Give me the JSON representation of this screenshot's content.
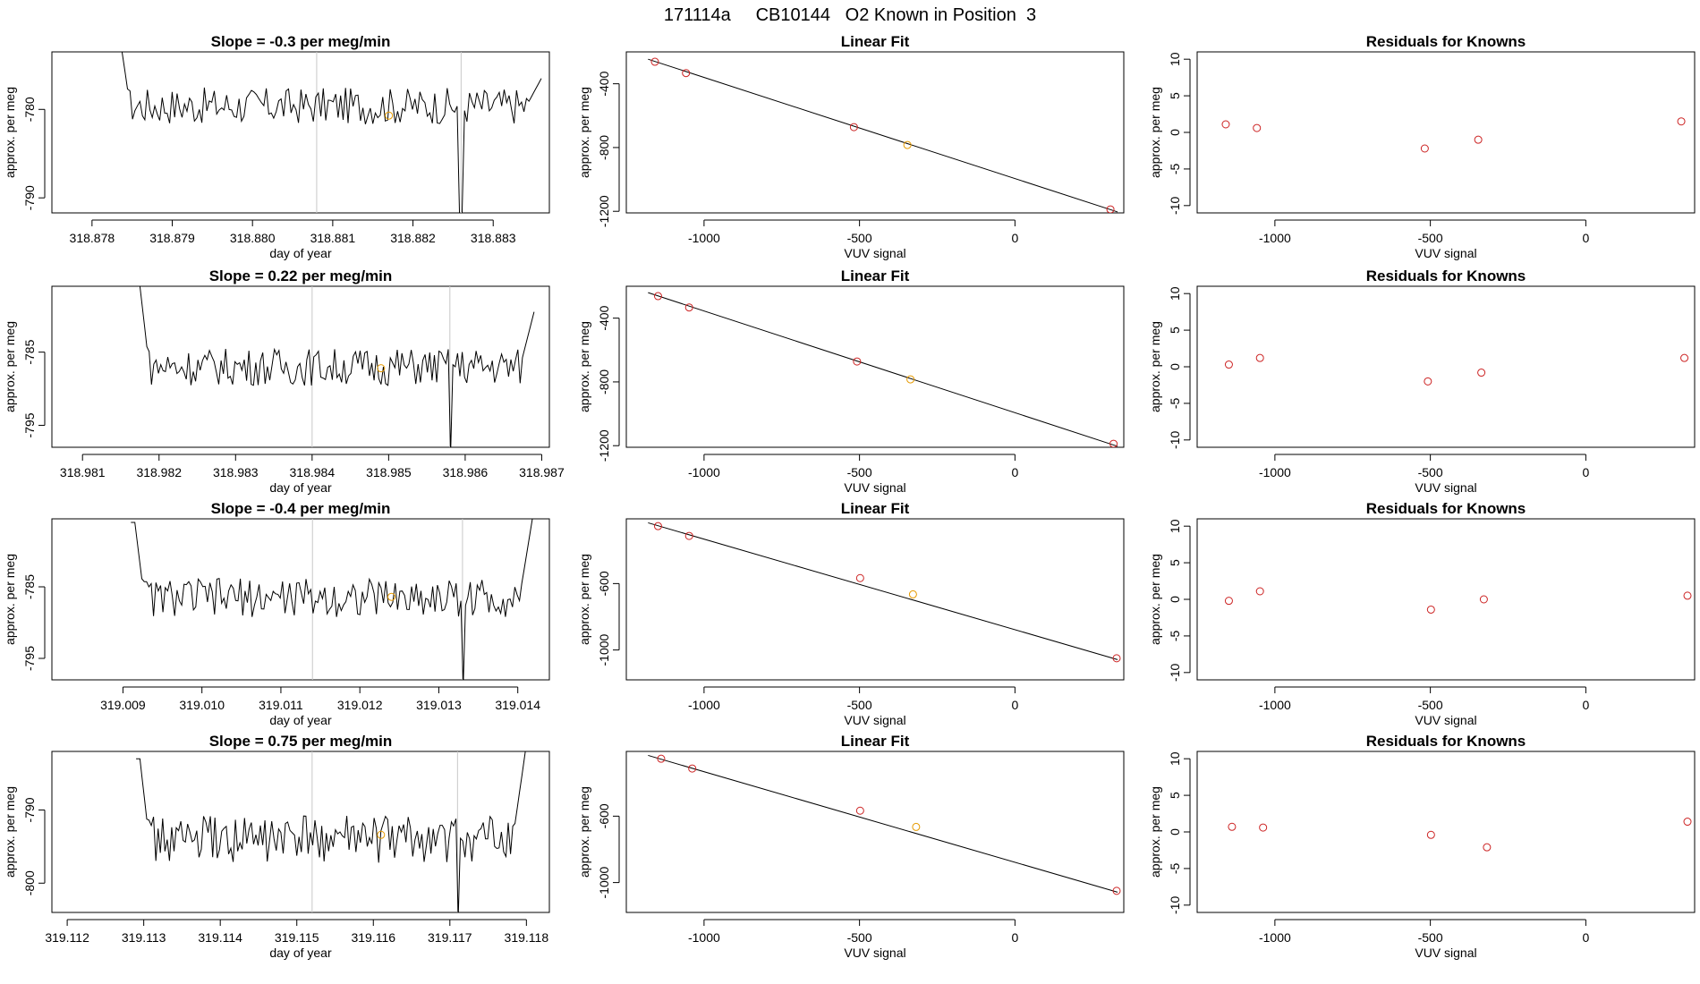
{
  "page_title": "171114a     CB10144   O2 Known in Position  3",
  "colors": {
    "line": "#000000",
    "point": "#cc2222",
    "highlight": "#e69a00",
    "vline": "#c8c8c8",
    "axis": "#000000"
  },
  "chart_data": [
    {
      "type": "line",
      "title": "Slope =  -0.3  per meg/min",
      "xlabel": "day of year",
      "ylabel": "approx. per meg",
      "xticks": [
        "318.878",
        "318.879",
        "318.880",
        "318.881",
        "318.882",
        "318.883"
      ],
      "yticks": [
        "-780",
        "-790"
      ],
      "xlim": [
        318.8775,
        318.8837
      ],
      "ylim": [
        -791.7,
        -773.5
      ],
      "vlines": [
        318.8808,
        318.8826
      ],
      "highlight": {
        "x": 318.8817,
        "y": -780.7
      },
      "noise": {
        "start": 318.8783,
        "end": 318.8836,
        "base": -779.6,
        "amp": 1.3,
        "head": -772.0,
        "head_end": 318.87835,
        "drop_at": 318.8826,
        "drop_to": -792.0,
        "tail": -776.5
      }
    },
    {
      "type": "scatter",
      "title": "Linear Fit",
      "xlabel": "VUV signal",
      "ylabel": "approx. per meg",
      "xticks": [
        "-1000",
        "-500",
        "0"
      ],
      "yticks": [
        "-400",
        "-800",
        "-1200"
      ],
      "xlim": [
        -1250,
        350
      ],
      "ylim": [
        -1210,
        -200
      ],
      "points": [
        [
          -1158,
          -262
        ],
        [
          -1058,
          -333
        ],
        [
          -518,
          -672
        ],
        [
          -346,
          -784
        ],
        [
          307,
          -1188
        ]
      ],
      "highlight_index": 3,
      "fit": [
        [
          -1180,
          -246
        ],
        [
          330,
          -1204
        ]
      ]
    },
    {
      "type": "scatter",
      "title": "Residuals for Knowns",
      "xlabel": "VUV signal",
      "ylabel": "approx. per meg",
      "xticks": [
        "-1000",
        "-500",
        "0"
      ],
      "yticks": [
        "10",
        "5",
        "0",
        "-5",
        "-10"
      ],
      "xlim": [
        -1250,
        350
      ],
      "ylim": [
        -11,
        11
      ],
      "points": [
        [
          -1158,
          1.1
        ],
        [
          -1058,
          0.6
        ],
        [
          -518,
          -2.2
        ],
        [
          -346,
          -1.0
        ],
        [
          307,
          1.5
        ]
      ]
    },
    {
      "type": "line",
      "title": "Slope =  0.22  per meg/min",
      "xlabel": "day of year",
      "ylabel": "approx. per meg",
      "xticks": [
        "318.981",
        "318.982",
        "318.983",
        "318.984",
        "318.985",
        "318.986",
        "318.987"
      ],
      "yticks": [
        "-785",
        "-795"
      ],
      "xlim": [
        318.9806,
        318.9871
      ],
      "ylim": [
        -798,
        -776
      ],
      "vlines": [
        318.984,
        318.9858
      ],
      "highlight": {
        "x": 318.9849,
        "y": -787.2
      },
      "noise": {
        "start": 318.9817,
        "end": 318.9869,
        "base": -787.0,
        "amp": 1.6,
        "head": -776.0,
        "head_end": 318.98175,
        "drop_at": 318.9858,
        "drop_to": -799.0,
        "tail": -779.5
      }
    },
    {
      "type": "scatter",
      "title": "Linear Fit",
      "xlabel": "VUV signal",
      "ylabel": "approx. per meg",
      "xticks": [
        "-1000",
        "-500",
        "0"
      ],
      "yticks": [
        "-400",
        "-800",
        "-1200"
      ],
      "xlim": [
        -1250,
        350
      ],
      "ylim": [
        -1210,
        -200
      ],
      "points": [
        [
          -1148,
          -262
        ],
        [
          -1048,
          -333
        ],
        [
          -508,
          -672
        ],
        [
          -336,
          -784
        ],
        [
          317,
          -1188
        ]
      ],
      "highlight_index": 3,
      "fit": [
        [
          -1180,
          -240
        ],
        [
          330,
          -1204
        ]
      ]
    },
    {
      "type": "scatter",
      "title": "Residuals for Knowns",
      "xlabel": "VUV signal",
      "ylabel": "approx. per meg",
      "xticks": [
        "-1000",
        "-500",
        "0"
      ],
      "yticks": [
        "10",
        "5",
        "0",
        "-5",
        "-10"
      ],
      "xlim": [
        -1250,
        350
      ],
      "ylim": [
        -11,
        11
      ],
      "points": [
        [
          -1148,
          0.3
        ],
        [
          -1048,
          1.2
        ],
        [
          -508,
          -2.0
        ],
        [
          -336,
          -0.8
        ],
        [
          317,
          1.2
        ]
      ]
    },
    {
      "type": "line",
      "title": "Slope =  -0.4  per meg/min",
      "xlabel": "day of year",
      "ylabel": "approx. per meg",
      "xticks": [
        "319.009",
        "319.010",
        "319.011",
        "319.012",
        "319.013",
        "319.014"
      ],
      "yticks": [
        "-785",
        "-795"
      ],
      "xlim": [
        319.0081,
        319.0144
      ],
      "ylim": [
        -798,
        -775.5
      ],
      "vlines": [
        319.0114,
        319.0133
      ],
      "highlight": {
        "x": 319.0124,
        "y": -786.4
      },
      "noise": {
        "start": 319.0091,
        "end": 319.0142,
        "base": -786.5,
        "amp": 1.7,
        "head": -776.0,
        "head_end": 319.00915,
        "drop_at": 319.0133,
        "drop_to": -799.0,
        "tail": -774.5
      }
    },
    {
      "type": "scatter",
      "title": "Linear Fit",
      "xlabel": "VUV signal",
      "ylabel": "approx. per meg",
      "xticks": [
        "-1000",
        "-500",
        "0"
      ],
      "yticks": [
        "-600",
        "-1000"
      ],
      "xlim": [
        -1250,
        350
      ],
      "ylim": [
        -1180,
        -210
      ],
      "points": [
        [
          -1148,
          -254
        ],
        [
          -1048,
          -313
        ],
        [
          -498,
          -567
        ],
        [
          -328,
          -665
        ],
        [
          327,
          -1050
        ]
      ],
      "highlight_index": 3,
      "fit": [
        [
          -1180,
          -234
        ],
        [
          330,
          -1058
        ]
      ]
    },
    {
      "type": "scatter",
      "title": "Residuals for Knowns",
      "xlabel": "VUV signal",
      "ylabel": "approx. per meg",
      "xticks": [
        "-1000",
        "-500",
        "0"
      ],
      "yticks": [
        "10",
        "5",
        "0",
        "-5",
        "-10"
      ],
      "xlim": [
        -1250,
        350
      ],
      "ylim": [
        -11,
        11
      ],
      "points": [
        [
          -1148,
          -0.2
        ],
        [
          -1048,
          1.1
        ],
        [
          -498,
          -1.4
        ],
        [
          -328,
          0.0
        ],
        [
          327,
          0.5
        ]
      ]
    },
    {
      "type": "line",
      "title": "Slope =  0.75  per meg/min",
      "xlabel": "day of year",
      "ylabel": "approx. per meg",
      "xticks": [
        "319.112",
        "319.113",
        "319.114",
        "319.115",
        "319.116",
        "319.117",
        "319.118"
      ],
      "yticks": [
        "-790",
        "-800"
      ],
      "xlim": [
        319.1118,
        319.1183
      ],
      "ylim": [
        -804,
        -782
      ],
      "vlines": [
        319.1152,
        319.1171
      ],
      "highlight": {
        "x": 319.1161,
        "y": -793.4
      },
      "noise": {
        "start": 319.1129,
        "end": 319.118,
        "base": -794.0,
        "amp": 2.0,
        "head": -783.0,
        "head_end": 319.11295,
        "drop_at": 319.1171,
        "drop_to": -805.0,
        "tail": -781.0
      }
    },
    {
      "type": "scatter",
      "title": "Linear Fit",
      "xlabel": "VUV signal",
      "ylabel": "approx. per meg",
      "xticks": [
        "-1000",
        "-500",
        "0"
      ],
      "yticks": [
        "-600",
        "-1000"
      ],
      "xlim": [
        -1250,
        350
      ],
      "ylim": [
        -1180,
        -210
      ],
      "points": [
        [
          -1138,
          -254
        ],
        [
          -1038,
          -313
        ],
        [
          -498,
          -567
        ],
        [
          -318,
          -665
        ],
        [
          327,
          -1050
        ]
      ],
      "highlight_index": 3,
      "fit": [
        [
          -1180,
          -234
        ],
        [
          330,
          -1058
        ]
      ]
    },
    {
      "type": "scatter",
      "title": "Residuals for Knowns",
      "xlabel": "VUV signal",
      "ylabel": "approx. per meg",
      "xticks": [
        "-1000",
        "-500",
        "0"
      ],
      "yticks": [
        "10",
        "5",
        "0",
        "-5",
        "-10"
      ],
      "xlim": [
        -1250,
        350
      ],
      "ylim": [
        -11,
        11
      ],
      "points": [
        [
          -1138,
          0.7
        ],
        [
          -1038,
          0.6
        ],
        [
          -498,
          -0.4
        ],
        [
          -318,
          -2.1
        ],
        [
          327,
          1.4
        ]
      ]
    }
  ]
}
